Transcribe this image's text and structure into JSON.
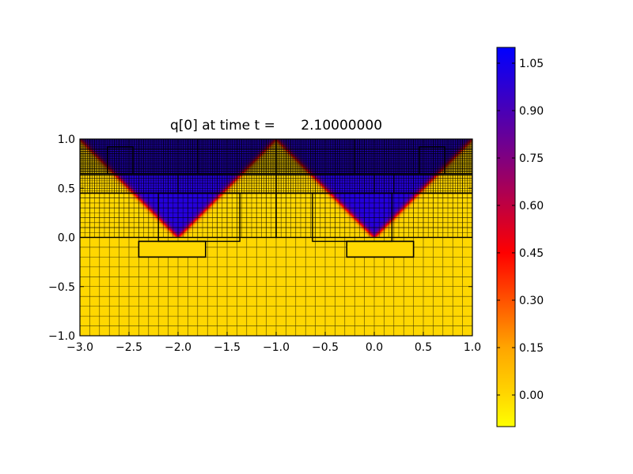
{
  "chart_data": {
    "type": "heatmap",
    "title": "q[0] at time t =      2.10000000",
    "xlabel": "",
    "ylabel": "",
    "xlim": [
      -3.0,
      1.0
    ],
    "ylim": [
      -1.0,
      1.0
    ],
    "x_ticks": [
      -3.0,
      -2.5,
      -2.0,
      -1.5,
      -1.0,
      -0.5,
      0.0,
      0.5,
      1.0
    ],
    "x_tick_labels": [
      "−3.0",
      "−2.5",
      "−2.0",
      "−1.5",
      "−1.0",
      "−0.5",
      "0.0",
      "0.5",
      "1.0"
    ],
    "y_ticks": [
      -1.0,
      -0.5,
      0.0,
      0.5,
      1.0
    ],
    "y_tick_labels": [
      "−1.0",
      "−0.5",
      "0.0",
      "0.5",
      "1.0"
    ],
    "colorbar": {
      "min": -0.1,
      "max": 1.1,
      "ticks": [
        0.0,
        0.15,
        0.3,
        0.45,
        0.6,
        0.75,
        0.9,
        1.05
      ],
      "tick_labels": [
        "0.00",
        "0.15",
        "0.30",
        "0.45",
        "0.60",
        "0.75",
        "0.90",
        "1.05"
      ],
      "stops": [
        {
          "value": -0.1,
          "color": "#ffff00"
        },
        {
          "value": 0.0,
          "color": "#ffd700"
        },
        {
          "value": 0.15,
          "color": "#ffa500"
        },
        {
          "value": 0.45,
          "color": "#ff0000"
        },
        {
          "value": 0.75,
          "color": "#800080"
        },
        {
          "value": 1.1,
          "color": "#0000ff"
        }
      ]
    },
    "field": {
      "description_values": {
        "background": 0.0,
        "wedge": 1.0
      },
      "wave_lines": [
        {
          "apex_x": -2.0,
          "apex_y": 0.0,
          "slope": 1.0
        },
        {
          "apex_x": 0.0,
          "apex_y": 0.0,
          "slope": 1.0
        }
      ],
      "front_width": 0.06
    },
    "amr_patches": [
      {
        "x0": -3.0,
        "x1": 1.0,
        "y0": -1.0,
        "y1": 1.0,
        "grid": 0.1
      },
      {
        "x0": -3.0,
        "x1": 1.0,
        "y0": 0.0,
        "y1": 1.0,
        "grid": 0.05
      },
      {
        "x0": -3.0,
        "x1": 1.0,
        "y0": 0.45,
        "y1": 1.0,
        "grid": 0.025
      },
      {
        "x0": -3.0,
        "x1": 1.0,
        "y0": 0.64,
        "y1": 1.0,
        "grid": 0.0125
      },
      {
        "x0": -2.4,
        "x1": -1.72,
        "y0": -0.2,
        "y1": -0.04,
        "grid": 0.0125
      },
      {
        "x0": -0.28,
        "x1": 0.4,
        "y0": -0.2,
        "y1": -0.04,
        "grid": 0.0125
      }
    ],
    "patch_boundaries": [
      {
        "x0": -3.0,
        "x1": 1.0,
        "y0": 0.64,
        "y1": 1.0
      },
      {
        "x0": -3.0,
        "x1": 1.0,
        "y0": 0.45,
        "y1": 0.64
      },
      {
        "x0": -3.0,
        "x1": -1.0,
        "y0": 0.0,
        "y1": 0.45
      },
      {
        "x0": -1.0,
        "x1": 1.0,
        "y0": 0.0,
        "y1": 0.45
      },
      {
        "x0": -2.72,
        "x1": -2.46,
        "y0": 0.64,
        "y1": 0.92
      },
      {
        "x0": -1.8,
        "x1": -1.0,
        "y0": 0.64,
        "y1": 1.0
      },
      {
        "x0": -2.2,
        "x1": -1.37,
        "y0": -0.04,
        "y1": 0.45
      },
      {
        "x0": -2.0,
        "x1": -1.0,
        "y0": 0.45,
        "y1": 0.64
      },
      {
        "x0": -1.0,
        "x1": -0.2,
        "y0": 0.64,
        "y1": 1.0
      },
      {
        "x0": 0.46,
        "x1": 0.72,
        "y0": 0.64,
        "y1": 0.92
      },
      {
        "x0": -0.63,
        "x1": 0.18,
        "y0": -0.04,
        "y1": 0.45
      },
      {
        "x0": -1.0,
        "x1": 0.0,
        "y0": 0.45,
        "y1": 0.64
      },
      {
        "x0": 0.2,
        "x1": 1.0,
        "y0": 0.45,
        "y1": 0.64
      },
      {
        "x0": -2.4,
        "x1": -1.72,
        "y0": -0.2,
        "y1": -0.04
      },
      {
        "x0": -0.28,
        "x1": 0.4,
        "y0": -0.2,
        "y1": -0.04
      }
    ]
  }
}
